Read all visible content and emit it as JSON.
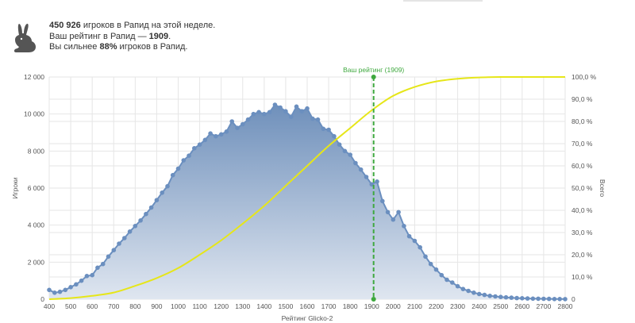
{
  "header": {
    "line1_num": "450 926",
    "line1_text": " игроков в Рапид на этой неделе.",
    "line2_text": "Ваш рейтинг в Рапид — ",
    "line2_num": "1909",
    "line2_end": ".",
    "line3_text": "Вы сильнее ",
    "line3_num": "88%",
    "line3_end": " игроков в Рапид."
  },
  "colors": {
    "distribution_line": "#6b8fbf",
    "distribution_fill_top": "#6f90bb",
    "distribution_fill_bottom": "#dfe6f0",
    "cumulative_line": "#e6e619",
    "marker": "#3ea83e",
    "grid": "#e6e6e6",
    "icon": "#555555"
  },
  "chart_data": {
    "type": "area",
    "xlabel": "Рейтинг Glicko-2",
    "ylabel_left": "Игроки",
    "ylabel_right": "Всего",
    "xlim": [
      400,
      2800
    ],
    "ylim_left": [
      0,
      12000
    ],
    "ylim_right": [
      0,
      100
    ],
    "x_ticks": [
      400,
      500,
      600,
      700,
      800,
      900,
      1000,
      1100,
      1200,
      1300,
      1400,
      1500,
      1600,
      1700,
      1800,
      1900,
      2000,
      2100,
      2200,
      2300,
      2400,
      2500,
      2600,
      2700,
      2800
    ],
    "y_left_ticks": [
      "0",
      "2 000",
      "4 000",
      "6 000",
      "8 000",
      "10 000",
      "12 000"
    ],
    "y_right_ticks": [
      "0",
      "10,0 %",
      "20,0 %",
      "30,0 %",
      "40,0 %",
      "50,0 %",
      "60,0 %",
      "70,0 %",
      "80,0 %",
      "90,0 %",
      "100,0 %"
    ],
    "marker": {
      "x": 1909,
      "label": "Ваш рейтинг (1909)"
    },
    "series": [
      {
        "kind": "distribution",
        "axis": "left",
        "x": [
          400,
          425,
          450,
          475,
          500,
          525,
          550,
          575,
          600,
          625,
          650,
          675,
          700,
          725,
          750,
          775,
          800,
          825,
          850,
          875,
          900,
          925,
          950,
          975,
          1000,
          1025,
          1050,
          1075,
          1100,
          1125,
          1150,
          1175,
          1200,
          1225,
          1250,
          1275,
          1300,
          1325,
          1350,
          1375,
          1400,
          1425,
          1450,
          1475,
          1500,
          1525,
          1550,
          1575,
          1600,
          1625,
          1650,
          1675,
          1700,
          1725,
          1750,
          1775,
          1800,
          1825,
          1850,
          1875,
          1900,
          1925,
          1950,
          1975,
          2000,
          2025,
          2050,
          2075,
          2100,
          2125,
          2150,
          2175,
          2200,
          2225,
          2250,
          2275,
          2300,
          2325,
          2350,
          2375,
          2400,
          2425,
          2450,
          2475,
          2500,
          2525,
          2550,
          2575,
          2600,
          2625,
          2650,
          2675,
          2700,
          2725,
          2750,
          2775,
          2800
        ],
        "values": [
          500,
          350,
          400,
          500,
          650,
          800,
          1000,
          1250,
          1300,
          1700,
          1900,
          2300,
          2650,
          3000,
          3300,
          3650,
          3950,
          4250,
          4600,
          4950,
          5350,
          5750,
          6100,
          6700,
          7050,
          7500,
          7750,
          8150,
          8350,
          8600,
          8950,
          8800,
          8900,
          9050,
          9600,
          9250,
          9450,
          9700,
          10000,
          10100,
          10000,
          10100,
          10500,
          10350,
          10150,
          9850,
          10400,
          10150,
          10300,
          9750,
          9700,
          9200,
          9150,
          8800,
          8350,
          8000,
          7800,
          7350,
          7000,
          6600,
          6200,
          6350,
          5300,
          4700,
          4300,
          4700,
          3950,
          3400,
          3150,
          2800,
          2300,
          1900,
          1600,
          1300,
          1050,
          900,
          700,
          550,
          450,
          350,
          280,
          230,
          180,
          150,
          120,
          100,
          80,
          60,
          50,
          40,
          30,
          25,
          20,
          15,
          10,
          8,
          5
        ]
      },
      {
        "kind": "cumulative",
        "axis": "right",
        "x": [
          400,
          500,
          600,
          700,
          800,
          900,
          1000,
          1100,
          1200,
          1300,
          1400,
          1500,
          1600,
          1700,
          1800,
          1900,
          2000,
          2100,
          2200,
          2300,
          2400,
          2500,
          2600,
          2700,
          2800
        ],
        "values": [
          0,
          0.5,
          1.5,
          3,
          6,
          9.5,
          14,
          20,
          26.5,
          34,
          42,
          51,
          60,
          69,
          77,
          85,
          91.5,
          95.5,
          98,
          99.2,
          99.8,
          100,
          100,
          100,
          100
        ]
      }
    ]
  }
}
